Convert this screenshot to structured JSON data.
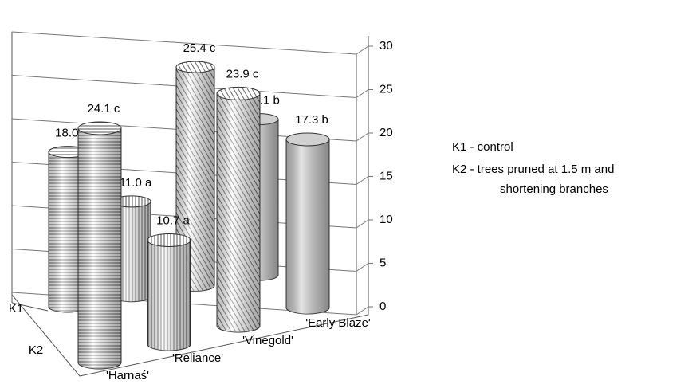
{
  "chart_data": {
    "type": "bar3d",
    "categories": [
      "'Harnaś'",
      "'Reliance'",
      "'Vinegold'",
      "'Early Blaze'"
    ],
    "series": [
      {
        "name": "K1",
        "values": [
          18.0,
          11.0,
          25.4,
          18.1
        ],
        "value_labels": [
          "18.0  b",
          "11.0  a",
          "25.4  c",
          "18.1  b"
        ]
      },
      {
        "name": "K2",
        "values": [
          24.1,
          10.7,
          23.9,
          17.3
        ],
        "value_labels": [
          "24.1  c",
          "10.7  a",
          "23.9  c",
          "17.3  b"
        ]
      }
    ],
    "ylim": [
      0,
      30
    ],
    "yticks": [
      0,
      5,
      10,
      15,
      20,
      25,
      30
    ],
    "grid": true,
    "notes": [
      "K1 -  control",
      "K2 -  trees pruned at 1.5 m and",
      "shortening  branches"
    ]
  }
}
